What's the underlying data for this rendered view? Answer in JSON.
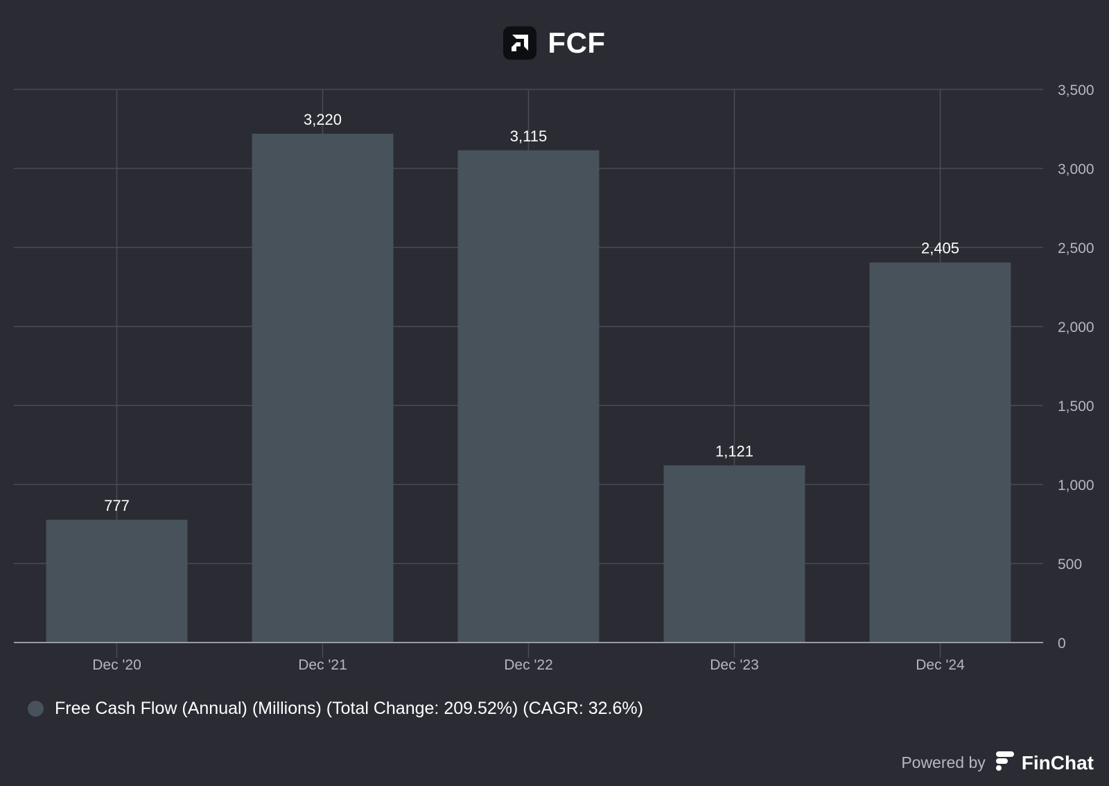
{
  "header": {
    "title": "FCF",
    "logo_icon": "amd-logo-icon"
  },
  "chart_data": {
    "type": "bar",
    "categories": [
      "Dec '20",
      "Dec '21",
      "Dec '22",
      "Dec '23",
      "Dec '24"
    ],
    "series": [
      {
        "name": "Free Cash Flow (Annual) (Millions) (Total Change: 209.52%) (CAGR: 32.6%)",
        "values": [
          777,
          3220,
          3115,
          1121,
          2405
        ],
        "value_labels": [
          "777",
          "3,220",
          "3,115",
          "1,121",
          "2,405"
        ],
        "color": "#47525b"
      }
    ],
    "ylim": [
      0,
      3500
    ],
    "y_ticks": [
      0,
      500,
      1000,
      1500,
      2000,
      2500,
      3000,
      3500
    ],
    "y_tick_labels": [
      "0",
      "500",
      "1,000",
      "1,500",
      "2,000",
      "2,500",
      "3,000",
      "3,500"
    ],
    "y_axis_side": "right",
    "grid": true,
    "legend_position": "bottom-left"
  },
  "colors": {
    "background": "#2a2b33",
    "bar": "#47525b",
    "grid": "#4a4c55",
    "axis": "#9a9ca3",
    "tick_text": "#b5b8be",
    "label_text": "#ffffff"
  },
  "footer": {
    "powered_by": "Powered by",
    "brand": "FinChat",
    "brand_icon": "finchat-logo-icon"
  }
}
